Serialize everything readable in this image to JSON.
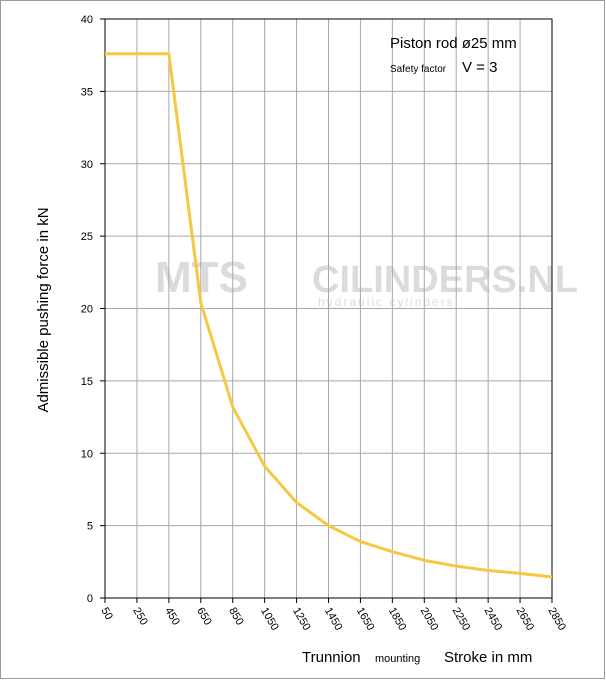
{
  "chart_data": {
    "type": "line",
    "y_label": "Admissible pushing force in kN",
    "x_label_parts": [
      "Trunnion",
      "mounting",
      "Stroke in mm"
    ],
    "annotations": [
      "Piston rod ø25 mm",
      "Safety factor",
      "V = 3"
    ],
    "watermark": [
      "MTS",
      "CILINDERS.NL",
      "hydraulic cylinders"
    ],
    "x": [
      50,
      450,
      650,
      850,
      1050,
      1250,
      1450,
      1650,
      1850,
      2050,
      2250,
      2450,
      2650,
      2850
    ],
    "values": [
      37.6,
      37.6,
      20.4,
      13.2,
      9.1,
      6.6,
      5.0,
      3.9,
      3.2,
      2.6,
      2.2,
      1.9,
      1.7,
      1.45
    ],
    "color": "#f4c842",
    "xlim": [
      50,
      2850
    ],
    "xticks": [
      50,
      250,
      450,
      650,
      850,
      1050,
      1250,
      1450,
      1650,
      1850,
      2050,
      2250,
      2450,
      2650,
      2850
    ],
    "ylim": [
      0,
      40
    ],
    "yticks": [
      0,
      5,
      10,
      15,
      20,
      25,
      30,
      35,
      40
    ],
    "grid": true
  }
}
